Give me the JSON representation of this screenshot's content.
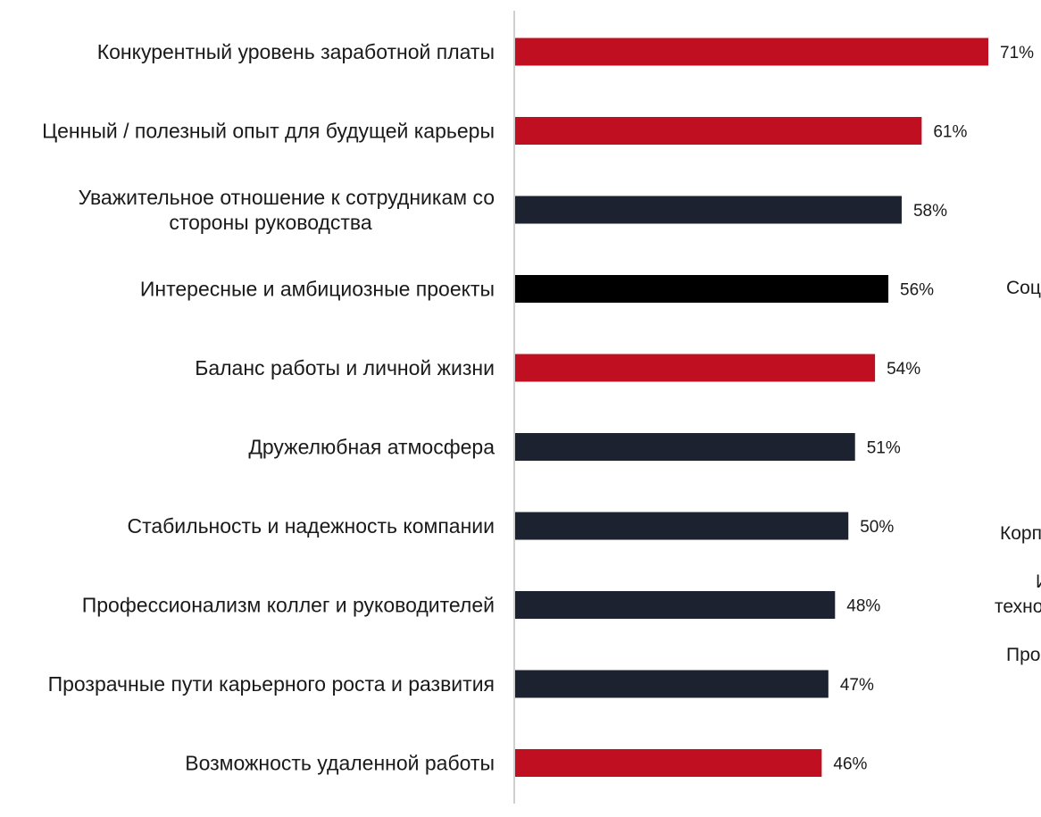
{
  "chart_data": {
    "type": "bar",
    "orientation": "horizontal",
    "categories": [
      [
        "Конкурентный уровень заработной платы"
      ],
      [
        "Ценный / полезный опыт для будущей карьеры"
      ],
      [
        "Уважительное отношение к сотрудникам со",
        "стороны руководства"
      ],
      [
        "Интересные и амбициозные проекты"
      ],
      [
        "Баланс работы и личной жизни"
      ],
      [
        "Дружелюбная атмосфера"
      ],
      [
        "Стабильность и надежность компании"
      ],
      [
        "Профессионализм коллег и руководителей"
      ],
      [
        "Прозрачные пути карьерного роста и развития"
      ],
      [
        "Возможность удаленной работы"
      ]
    ],
    "values": [
      71,
      61,
      58,
      56,
      54,
      51,
      50,
      48,
      47,
      46
    ],
    "value_labels": [
      "71%",
      "61%",
      "58%",
      "56%",
      "54%",
      "51%",
      "50%",
      "48%",
      "47%",
      "46%"
    ],
    "bar_colors": [
      "#c00f20",
      "#c00f20",
      "#1c2230",
      "#000000",
      "#c00f20",
      "#1c2230",
      "#1c2230",
      "#1c2230",
      "#1c2230",
      "#c00f20"
    ],
    "xlim": [
      0,
      71
    ],
    "grid": false,
    "legend": "none"
  },
  "cropped_panel_text": [
    "Соц",
    "Корп",
    "И",
    "техно",
    "Про"
  ]
}
